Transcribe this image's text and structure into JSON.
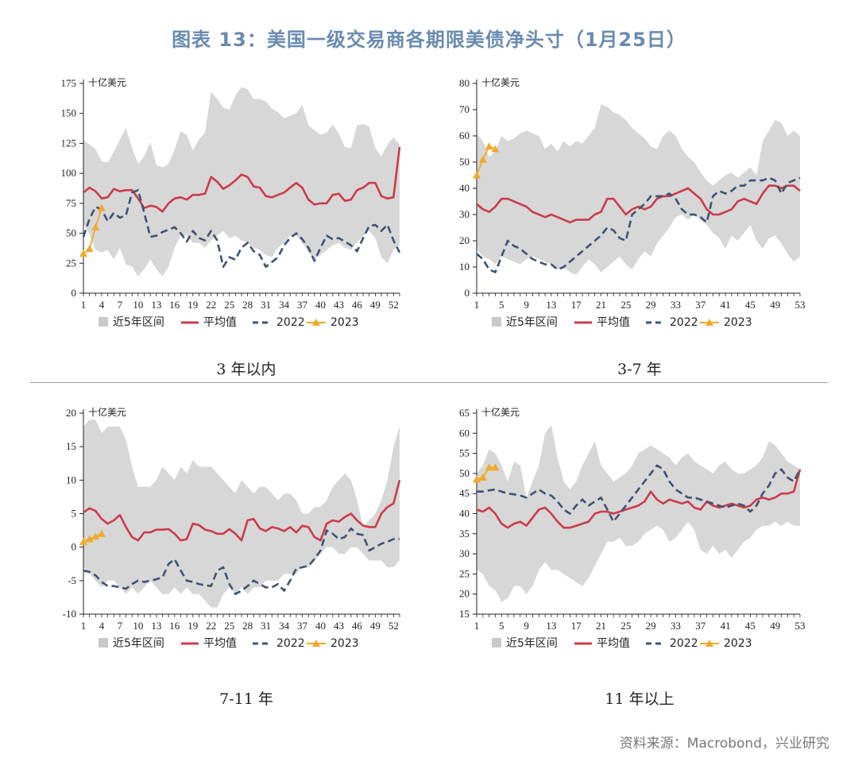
{
  "figure": {
    "title": "图表 13：美国一级交易商各期限美债净头寸（1月25日）",
    "source": "资料来源：Macrobond，兴业研究"
  },
  "colors": {
    "band": "#d7d7d7",
    "avg": "#cc3b4b",
    "y2022": "#3d5373",
    "y2023": "#f0a92a",
    "title": "#6a8bb0"
  },
  "chart_data": [
    {
      "type": "line",
      "caption": "3 年以内",
      "unit_label": "十亿美元",
      "ylim": [
        0,
        175
      ],
      "yticks": [
        0,
        25,
        50,
        75,
        100,
        125,
        150,
        175
      ],
      "xlim": [
        1,
        53
      ],
      "xticks": [
        1,
        4,
        7,
        10,
        13,
        16,
        19,
        22,
        25,
        28,
        31,
        34,
        37,
        40,
        43,
        46,
        49,
        52
      ],
      "legend": [
        "近5年区间",
        "平均值",
        "2022",
        "2023"
      ],
      "band_upper": [
        128,
        124,
        120,
        110,
        109,
        118,
        128,
        138,
        121,
        108,
        114,
        126,
        107,
        105,
        108,
        120,
        135,
        132,
        119,
        128,
        134,
        168,
        162,
        155,
        153,
        165,
        172,
        170,
        162,
        162,
        160,
        154,
        151,
        146,
        148,
        150,
        157,
        140,
        136,
        132,
        134,
        141,
        133,
        122,
        121,
        140,
        141,
        139,
        121,
        114,
        124,
        130,
        124
      ],
      "band_lower": [
        58,
        49,
        36,
        34,
        36,
        28,
        38,
        24,
        22,
        14,
        20,
        28,
        20,
        14,
        22,
        38,
        48,
        48,
        42,
        42,
        38,
        44,
        48,
        52,
        46,
        48,
        44,
        42,
        38,
        36,
        32,
        30,
        38,
        42,
        48,
        48,
        42,
        34,
        28,
        32,
        36,
        40,
        42,
        38,
        36,
        42,
        48,
        52,
        46,
        30,
        25,
        36,
        40
      ],
      "avg": [
        84,
        88,
        85,
        79,
        80,
        87,
        85,
        86,
        86,
        79,
        71,
        73,
        72,
        68,
        75,
        79,
        80,
        78,
        82,
        82,
        83,
        97,
        93,
        87,
        90,
        94,
        99,
        97,
        89,
        88,
        81,
        80,
        82,
        84,
        88,
        92,
        88,
        78,
        74,
        75,
        75,
        82,
        83,
        77,
        78,
        86,
        88,
        92,
        92,
        81,
        79,
        80,
        122
      ],
      "y2022": [
        47,
        62,
        72,
        70,
        60,
        67,
        63,
        65,
        84,
        86,
        67,
        47,
        48,
        51,
        53,
        55,
        50,
        43,
        52,
        46,
        44,
        52,
        44,
        22,
        30,
        28,
        38,
        42,
        35,
        32,
        22,
        26,
        30,
        40,
        46,
        50,
        45,
        38,
        27,
        38,
        48,
        45,
        46,
        43,
        40,
        35,
        46,
        56,
        57,
        52,
        57,
        44,
        34
      ],
      "y2023": [
        33,
        37,
        55,
        71
      ]
    },
    {
      "type": "line",
      "caption": "3-7 年",
      "unit_label": "十亿美元",
      "ylim": [
        0,
        80
      ],
      "yticks": [
        0,
        10,
        20,
        30,
        40,
        50,
        60,
        70,
        80
      ],
      "xlim": [
        1,
        53
      ],
      "xticks": [
        1,
        5,
        9,
        13,
        17,
        21,
        25,
        29,
        33,
        37,
        41,
        45,
        49,
        53
      ],
      "legend": [
        "近5年区间",
        "平均值",
        "2022",
        "2023"
      ],
      "band_upper": [
        61,
        58,
        52,
        54,
        60,
        58,
        59,
        61,
        62,
        61,
        60,
        55,
        57,
        54,
        58,
        56,
        58,
        57,
        60,
        63,
        72,
        71,
        69,
        68,
        66,
        63,
        61,
        59,
        56,
        55,
        60,
        62,
        60,
        55,
        52,
        50,
        46,
        43,
        41,
        43,
        45,
        46,
        44,
        46,
        48,
        45,
        58,
        62,
        66,
        65,
        60,
        62,
        60
      ],
      "band_lower": [
        17,
        14,
        13,
        11,
        14,
        13,
        12,
        11,
        13,
        14,
        13,
        12,
        11,
        9,
        10,
        8,
        7,
        10,
        13,
        11,
        8,
        10,
        12,
        14,
        11,
        9,
        13,
        16,
        14,
        19,
        22,
        25,
        29,
        30,
        28,
        30,
        28,
        26,
        23,
        21,
        17,
        22,
        20,
        23,
        26,
        20,
        17,
        21,
        22,
        19,
        15,
        12,
        14
      ],
      "avg": [
        34,
        32,
        31,
        33,
        36,
        36,
        35,
        34,
        33,
        31,
        30,
        29,
        30,
        29,
        28,
        27,
        28,
        28,
        28,
        30,
        31,
        36,
        36,
        33,
        30,
        32,
        33,
        32,
        33,
        36,
        37,
        37,
        38,
        39,
        40,
        38,
        36,
        32,
        30,
        30,
        31,
        32,
        35,
        36,
        35,
        34,
        38,
        41,
        41,
        40,
        41,
        41,
        39
      ],
      "y2022": [
        15,
        13,
        9,
        8,
        14,
        20,
        18,
        17,
        15,
        13,
        12,
        11,
        11,
        9,
        10,
        12,
        14,
        16,
        18,
        20,
        22,
        25,
        24,
        21,
        20,
        30,
        32,
        34,
        37,
        37,
        37,
        38,
        36,
        32,
        30,
        30,
        29,
        27,
        37,
        39,
        38,
        39,
        41,
        41,
        43,
        43,
        43,
        44,
        43,
        38,
        42,
        43,
        44
      ],
      "y2023": [
        45,
        51,
        56,
        55
      ]
    },
    {
      "type": "line",
      "caption": "7-11 年",
      "unit_label": "十亿美元",
      "ylim": [
        -10,
        20
      ],
      "yticks": [
        -10,
        -5,
        0,
        5,
        10,
        15,
        20
      ],
      "xlim": [
        1,
        53
      ],
      "xticks": [
        1,
        4,
        7,
        10,
        13,
        16,
        19,
        22,
        25,
        28,
        31,
        34,
        37,
        40,
        43,
        46,
        49,
        52
      ],
      "legend": [
        "近5年区间",
        "平均值",
        "2022",
        "2023"
      ],
      "band_upper": [
        18,
        19,
        19,
        17,
        18,
        18,
        18,
        16,
        12,
        9,
        9,
        9,
        10,
        12,
        11,
        10,
        12,
        11,
        13,
        12,
        12,
        12,
        11,
        10,
        9,
        8,
        10,
        9,
        8,
        9,
        9,
        8,
        7,
        8,
        8,
        7,
        5,
        5,
        6,
        6,
        7,
        9,
        10,
        11,
        10,
        7,
        3,
        4,
        5,
        7,
        10,
        15,
        18
      ],
      "band_lower": [
        -3,
        -4,
        -5,
        -6,
        -5,
        -5,
        -6,
        -7,
        -6,
        -7,
        -6,
        -5,
        -6,
        -7,
        -7,
        -6,
        -7,
        -6,
        -7,
        -7,
        -8,
        -9,
        -9,
        -7,
        -6,
        -7,
        -6,
        -7,
        -6,
        -6,
        -5,
        -5,
        -5,
        -4,
        -4,
        -4,
        -3,
        -3,
        -2,
        -1,
        0,
        0,
        -1,
        -1,
        0,
        0,
        -1,
        -2,
        -2,
        -2,
        -3,
        -3,
        -2
      ],
      "avg": [
        5.2,
        5.8,
        5.4,
        4.2,
        3.5,
        4.0,
        4.8,
        3.0,
        1.5,
        1.0,
        2.2,
        2.2,
        2.6,
        2.6,
        2.7,
        2.0,
        1.0,
        1.2,
        3.5,
        3.3,
        2.6,
        2.4,
        2.0,
        2.0,
        2.7,
        2.0,
        1.0,
        4.0,
        4.2,
        2.8,
        2.4,
        3.0,
        2.8,
        2.4,
        3.0,
        2.2,
        3.2,
        3.0,
        1.5,
        1.0,
        3.5,
        4.0,
        3.8,
        4.5,
        5.0,
        4.0,
        3.2,
        3.0,
        3.0,
        5.0,
        6.0,
        6.5,
        10.0
      ],
      "y2022": [
        -3.5,
        -3.7,
        -4.2,
        -5.2,
        -5.8,
        -5.8,
        -6.0,
        -6.2,
        -5.5,
        -5.0,
        -5.2,
        -5.0,
        -4.8,
        -4.5,
        -2.5,
        -1.8,
        -3.5,
        -5.0,
        -5.2,
        -5.5,
        -5.7,
        -5.8,
        -3.5,
        -3.0,
        -5.5,
        -7.0,
        -6.5,
        -5.8,
        -5.0,
        -5.5,
        -6.0,
        -6.0,
        -5.5,
        -6.5,
        -5.0,
        -3.2,
        -3.0,
        -2.8,
        -1.8,
        -0.5,
        2.5,
        2.0,
        1.2,
        1.5,
        2.8,
        2.0,
        1.8,
        -0.5,
        0.0,
        0.5,
        0.8,
        1.2,
        1.2
      ],
      "y2023": [
        0.8,
        1.2,
        1.6,
        2.0
      ]
    },
    {
      "type": "line",
      "caption": "11 年以上",
      "unit_label": "十亿美元",
      "ylim": [
        15,
        65
      ],
      "yticks": [
        15,
        20,
        25,
        30,
        35,
        40,
        45,
        50,
        55,
        60,
        65
      ],
      "xlim": [
        1,
        53
      ],
      "xticks": [
        1,
        5,
        9,
        13,
        17,
        21,
        25,
        29,
        33,
        37,
        41,
        45,
        49,
        53
      ],
      "legend": [
        "近5年区间",
        "平均值",
        "2022",
        "2023"
      ],
      "band_upper": [
        50,
        52,
        56,
        55,
        52,
        48,
        53,
        52,
        44,
        48,
        52,
        60,
        62,
        54,
        48,
        46,
        48,
        52,
        55,
        58,
        52,
        50,
        48,
        49,
        50,
        52,
        55,
        56,
        57,
        56,
        55,
        54,
        52,
        54,
        55,
        53,
        52,
        51,
        50,
        52,
        53,
        51,
        50,
        50,
        51,
        52,
        54,
        58,
        57,
        55,
        53,
        52,
        51
      ],
      "band_lower": [
        26,
        25,
        22,
        21,
        18,
        19,
        22,
        22,
        20,
        22,
        26,
        28,
        26,
        26,
        25,
        24,
        23,
        22,
        24,
        27,
        30,
        33,
        33,
        34,
        32,
        32,
        33,
        35,
        36,
        37,
        36,
        33,
        34,
        36,
        38,
        36,
        31,
        30,
        32,
        30,
        31,
        29,
        31,
        33,
        34,
        36,
        37,
        37,
        38,
        37,
        38,
        37,
        37
      ],
      "avg": [
        41,
        40.5,
        41.5,
        40,
        37.5,
        36.5,
        37.5,
        38,
        37,
        39,
        41,
        41.5,
        40,
        38,
        36.5,
        36.5,
        37,
        37.5,
        38,
        40,
        40.5,
        40.5,
        40,
        40.5,
        41,
        41.5,
        42,
        43,
        45.5,
        43.5,
        42.5,
        43.5,
        43,
        42.5,
        43,
        41.5,
        41,
        43,
        42,
        41.5,
        42,
        42.5,
        42,
        41.5,
        42,
        43.5,
        44,
        43.5,
        44,
        45,
        45,
        45.5,
        51
      ],
      "y2022": [
        45.5,
        45.5,
        45.8,
        46,
        45.5,
        45,
        44.8,
        44.5,
        44,
        45,
        46,
        45,
        44.5,
        43,
        41,
        40,
        42,
        43.5,
        42,
        43,
        44,
        41,
        38,
        40,
        42,
        44,
        46,
        48,
        50,
        52,
        51,
        48,
        46,
        45,
        44,
        44,
        43.5,
        43,
        42.5,
        42,
        41.5,
        42,
        42.5,
        42,
        40.5,
        42,
        45,
        47,
        50,
        51,
        49,
        48,
        51
      ],
      "y2023": [
        48.5,
        49,
        51.5,
        51.5
      ]
    }
  ],
  "panels_meta": {}
}
